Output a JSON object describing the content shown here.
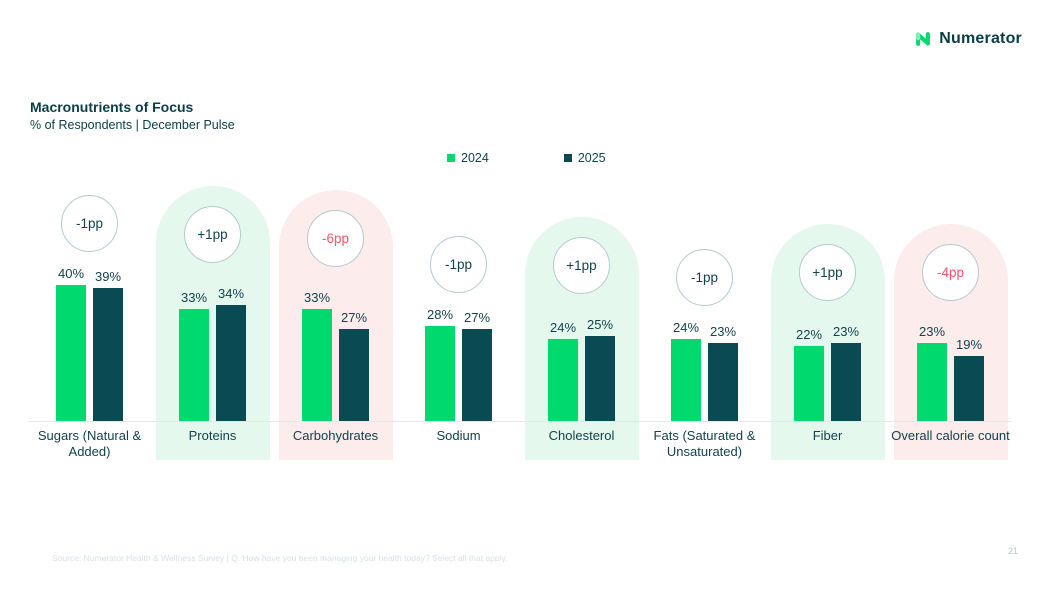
{
  "logo": {
    "brand": "Numerator"
  },
  "header": {
    "title": "Macronutrients of Focus",
    "subtitle": "% of Respondents | December Pulse"
  },
  "legend": [
    {
      "label": "2024",
      "color": "#00d96e"
    },
    {
      "label": "2025",
      "color": "#0a4a53"
    }
  ],
  "colors": {
    "bar_2024_green": "#00d96e",
    "bar_2025_dark_teal": "#0a4a53",
    "pill_green": "#e5f8ee",
    "pill_pink": "#fcecec",
    "badge_border": "#b3cad1",
    "badge_text_dark": "#12424d",
    "badge_text_red": "#f45569",
    "text_dark": "#12424d",
    "axis_line": "#e4e8e9"
  },
  "chart_data": {
    "type": "bar",
    "title": "Macronutrients of Focus",
    "subtitle": "% of Respondents | December Pulse",
    "unit": "%",
    "categories": [
      "Sugars (Natural & Added)",
      "Proteins",
      "Carbohydrates",
      "Sodium",
      "Cholesterol",
      "Fats (Saturated & Unsaturated)",
      "Fiber",
      "Overall calorie count"
    ],
    "series": [
      {
        "name": "2024",
        "values": [
          40,
          33,
          33,
          28,
          24,
          24,
          22,
          23
        ]
      },
      {
        "name": "2025",
        "values": [
          39,
          34,
          27,
          27,
          25,
          23,
          23,
          19
        ]
      }
    ],
    "change_labels": [
      "-1pp",
      "+1pp",
      "-6pp",
      "-1pp",
      "+1pp",
      "-1pp",
      "+1pp",
      "-4pp"
    ],
    "highlight": [
      "none",
      "green",
      "pink",
      "none",
      "green",
      "none",
      "green",
      "pink"
    ],
    "ylim": [
      0,
      45
    ],
    "grid": false,
    "legend_position": "top-center"
  },
  "footer": {
    "source": "Source: Numerator Health & Wellness Survey | Q. How have you been managing your health today? Select all that apply.",
    "page": "21"
  }
}
